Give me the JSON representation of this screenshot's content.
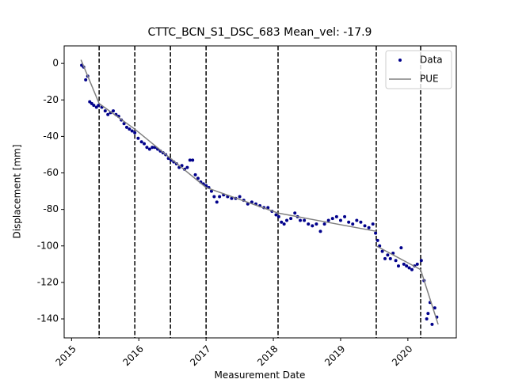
{
  "chart_data": {
    "type": "line",
    "title": "CTTC_BCN_S1_DSC_683    Mean_vel: -17.9",
    "x_label": "Measurement Date",
    "y_label": "Displacement [mm]",
    "xlim": [
      2014.89,
      2020.72
    ],
    "xticks": [
      2015,
      2016,
      2017,
      2018,
      2019,
      2020
    ],
    "ylim": [
      -150.4,
      9.6
    ],
    "yticks": [
      0,
      -20,
      -40,
      -60,
      -80,
      -100,
      -120,
      -140
    ],
    "vlines": [
      2015.41,
      2015.94,
      2016.47,
      2017.0,
      2018.07,
      2019.53,
      2020.19
    ],
    "vline_color": "#000000",
    "legend": "upper right",
    "series": [
      {
        "name": "Data",
        "type": "scatter",
        "color": "#00008b",
        "x": [
          2015.15,
          2015.18,
          2015.21,
          2015.24,
          2015.27,
          2015.3,
          2015.33,
          2015.37,
          2015.4,
          2015.45,
          2015.5,
          2015.54,
          2015.58,
          2015.62,
          2015.66,
          2015.7,
          2015.74,
          2015.78,
          2015.82,
          2015.86,
          2015.9,
          2015.94,
          2015.99,
          2016.04,
          2016.08,
          2016.12,
          2016.16,
          2016.2,
          2016.24,
          2016.28,
          2016.32,
          2016.36,
          2016.4,
          2016.44,
          2016.48,
          2016.52,
          2016.56,
          2016.6,
          2016.64,
          2016.68,
          2016.72,
          2016.76,
          2016.8,
          2016.84,
          2016.88,
          2016.92,
          2016.96,
          2017.0,
          2017.04,
          2017.08,
          2017.12,
          2017.16,
          2017.2,
          2017.26,
          2017.32,
          2017.38,
          2017.44,
          2017.5,
          2017.56,
          2017.62,
          2017.68,
          2017.74,
          2017.8,
          2017.86,
          2017.92,
          2017.98,
          2018.04,
          2018.08,
          2018.12,
          2018.16,
          2018.2,
          2018.26,
          2018.32,
          2018.36,
          2018.4,
          2018.46,
          2018.52,
          2018.58,
          2018.64,
          2018.7,
          2018.76,
          2018.82,
          2018.88,
          2018.94,
          2019.0,
          2019.06,
          2019.12,
          2019.18,
          2019.24,
          2019.3,
          2019.36,
          2019.42,
          2019.48,
          2019.52,
          2019.55,
          2019.58,
          2019.62,
          2019.66,
          2019.7,
          2019.74,
          2019.78,
          2019.82,
          2019.86,
          2019.9,
          2019.94,
          2019.98,
          2020.02,
          2020.06,
          2020.1,
          2020.14,
          2020.2,
          2020.24,
          2020.28,
          2020.3,
          2020.33,
          2020.36,
          2020.4,
          2020.43
        ],
        "values": [
          -1,
          -2,
          -9,
          -7,
          -21,
          -22,
          -23,
          -24,
          -23,
          -24,
          -26,
          -28,
          -27,
          -26,
          -28,
          -29,
          -31,
          -33,
          -35,
          -36,
          -37,
          -38,
          -41,
          -43,
          -44,
          -46,
          -47,
          -46,
          -46,
          -47,
          -48,
          -49,
          -50,
          -52,
          -53,
          -54,
          -55,
          -57,
          -56,
          -58,
          -57,
          -53,
          -53,
          -61,
          -63,
          -65,
          -66,
          -67,
          -68,
          -70,
          -73,
          -76,
          -73,
          -72,
          -73,
          -74,
          -74,
          -73,
          -75,
          -77,
          -76,
          -77,
          -78,
          -79,
          -79,
          -81,
          -83,
          -84,
          -87,
          -88,
          -86,
          -85,
          -82,
          -84,
          -86,
          -86,
          -88,
          -89,
          -88,
          -92,
          -88,
          -86,
          -85,
          -84,
          -86,
          -84,
          -87,
          -88,
          -86,
          -87,
          -89,
          -90,
          -88,
          -93,
          -97,
          -100,
          -103,
          -107,
          -105,
          -107,
          -104,
          -108,
          -111,
          -101,
          -110,
          -111,
          -112,
          -113,
          -111,
          -110,
          -108,
          -119,
          -140,
          -137,
          -131,
          -143,
          -134,
          -139
        ]
      },
      {
        "name": "PUE",
        "type": "line",
        "color": "#808080",
        "x": [
          2015.14,
          2015.41,
          2015.94,
          2016.47,
          2017.0,
          2018.07,
          2019.53,
          null,
          2019.53,
          2020.19,
          2020.45
        ],
        "values": [
          2,
          -22,
          -36,
          -52,
          -68,
          -82,
          -92,
          null,
          -100,
          -113,
          -143
        ]
      }
    ]
  }
}
